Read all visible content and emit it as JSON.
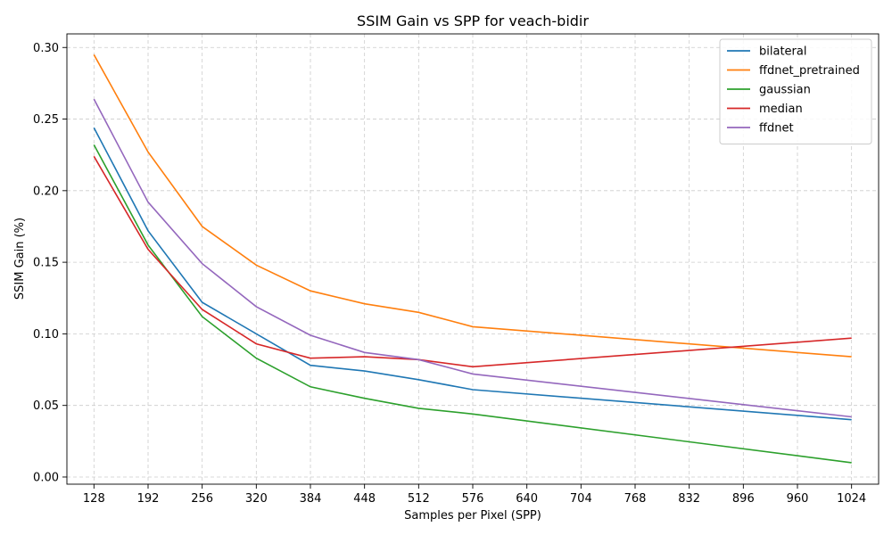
{
  "chart_data": {
    "type": "line",
    "title": "SSIM Gain vs SPP for veach-bidir",
    "xlabel": "Samples per Pixel (SPP)",
    "ylabel": "SSIM Gain (%)",
    "xlim": [
      96,
      1056
    ],
    "ylim": [
      -0.005,
      0.3095
    ],
    "xticks": [
      128,
      192,
      256,
      320,
      384,
      448,
      512,
      576,
      640,
      704,
      768,
      832,
      896,
      960,
      1024
    ],
    "yticks": [
      0.0,
      0.05,
      0.1,
      0.15,
      0.2,
      0.25,
      0.3
    ],
    "ytick_labels": [
      "0.00",
      "0.05",
      "0.10",
      "0.15",
      "0.20",
      "0.25",
      "0.30"
    ],
    "grid": true,
    "legend_position": "top-right",
    "series": [
      {
        "name": "bilateral",
        "color": "#1f77b4",
        "x": [
          128,
          192,
          256,
          384,
          448,
          512,
          576,
          1024
        ],
        "y": [
          0.244,
          0.172,
          0.122,
          0.078,
          0.074,
          0.068,
          0.061,
          0.04
        ]
      },
      {
        "name": "ffdnet_pretrained",
        "color": "#ff7f0e",
        "x": [
          128,
          192,
          256,
          320,
          384,
          448,
          512,
          576,
          1024
        ],
        "y": [
          0.295,
          0.227,
          0.175,
          0.148,
          0.13,
          0.121,
          0.115,
          0.105,
          0.084
        ]
      },
      {
        "name": "gaussian",
        "color": "#2ca02c",
        "x": [
          128,
          192,
          256,
          320,
          384,
          448,
          512,
          576,
          1024
        ],
        "y": [
          0.232,
          0.162,
          0.112,
          0.083,
          0.063,
          0.055,
          0.048,
          0.044,
          0.01
        ]
      },
      {
        "name": "median",
        "color": "#d62728",
        "x": [
          128,
          192,
          256,
          320,
          384,
          448,
          512,
          576,
          1024
        ],
        "y": [
          0.224,
          0.159,
          0.117,
          0.093,
          0.083,
          0.084,
          0.082,
          0.077,
          0.097
        ]
      },
      {
        "name": "ffdnet",
        "color": "#9467bd",
        "x": [
          128,
          192,
          256,
          320,
          384,
          448,
          512,
          576,
          1024
        ],
        "y": [
          0.264,
          0.192,
          0.149,
          0.119,
          0.099,
          0.087,
          0.082,
          0.072,
          0.042
        ]
      }
    ]
  }
}
